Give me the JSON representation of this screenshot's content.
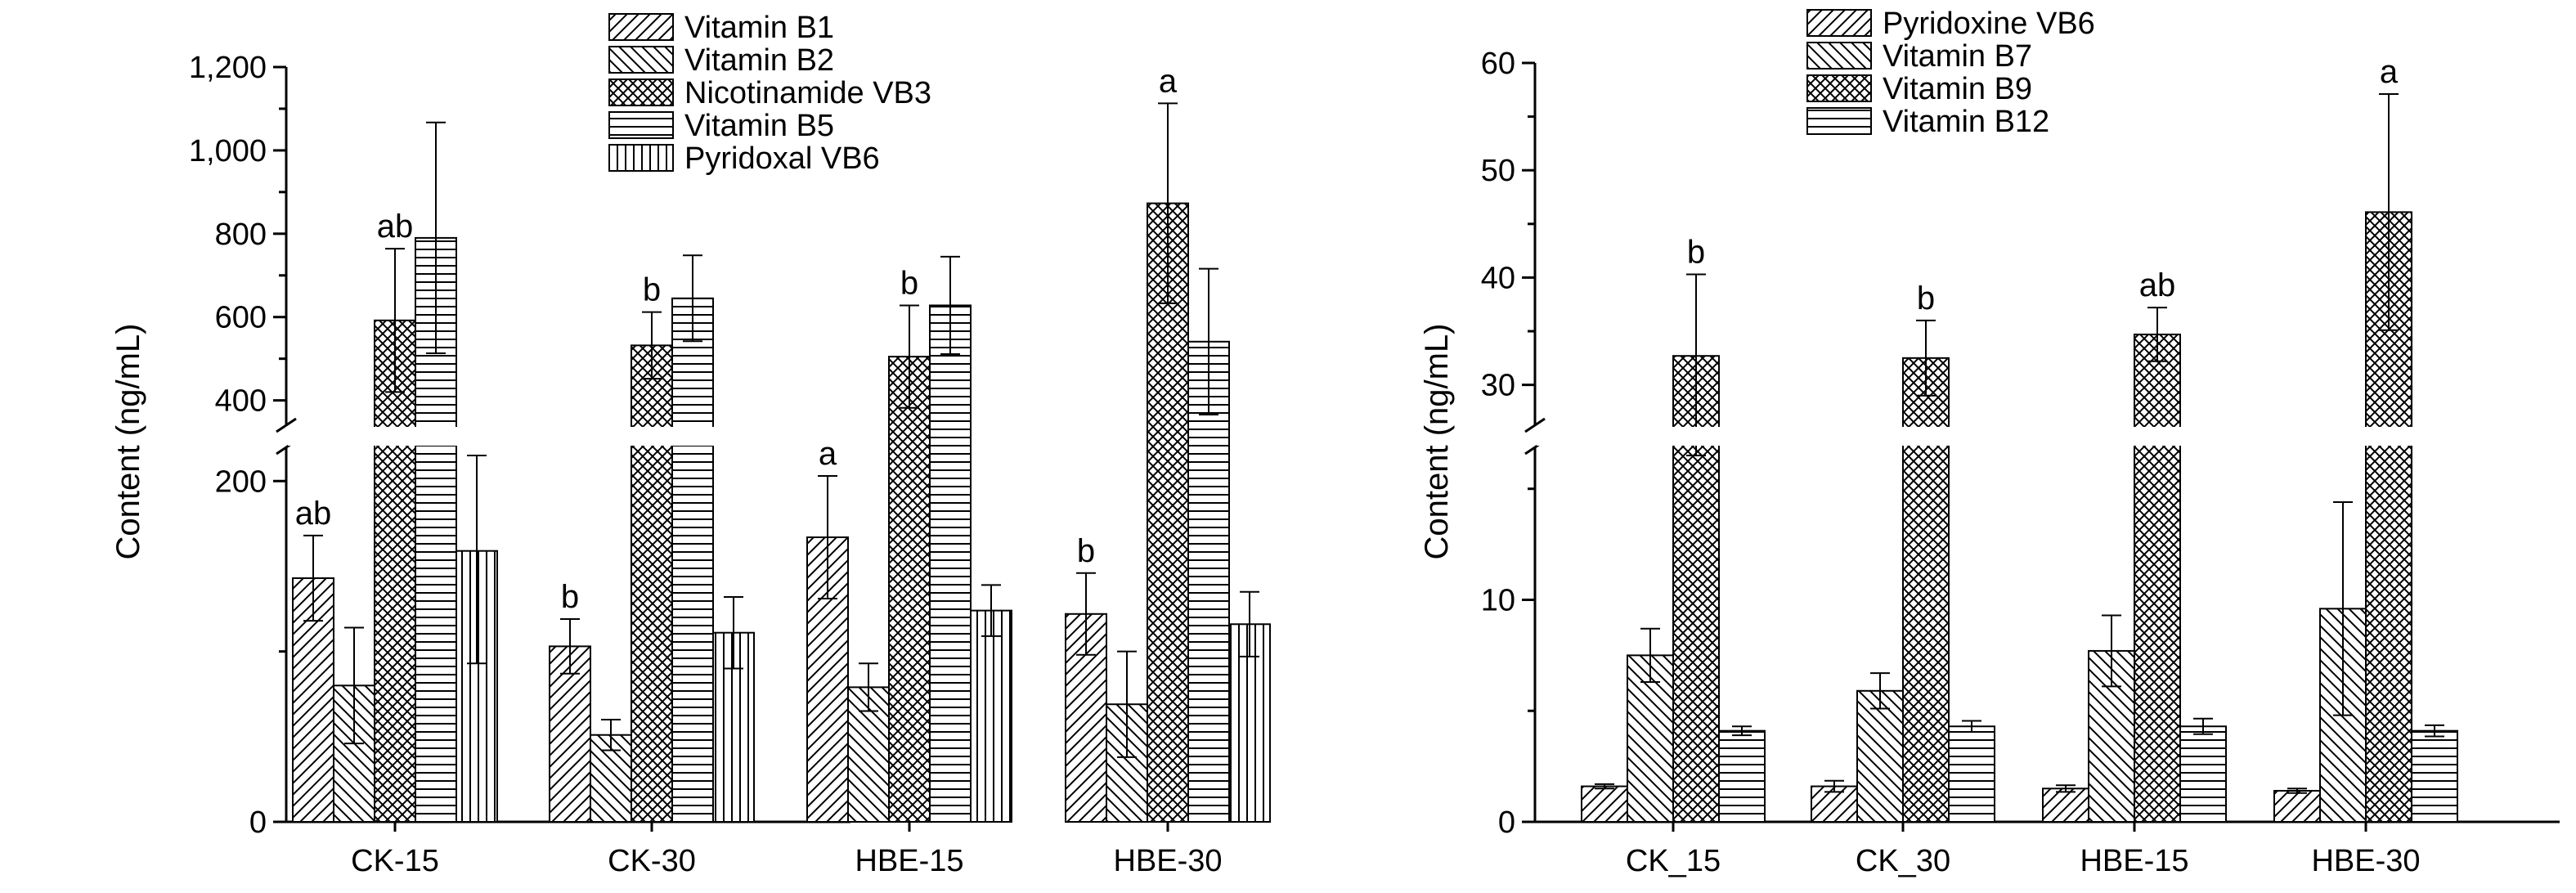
{
  "chart_data": [
    {
      "type": "bar",
      "ylabel": "Content (ng/mL)",
      "categories": [
        "CK-15",
        "CK-30",
        "HBE-15",
        "HBE-30"
      ],
      "broken_axis": {
        "lower": [
          0,
          215
        ],
        "upper": [
          360,
          1200
        ]
      },
      "yticks_lower": [
        "0",
        "200"
      ],
      "yticks_upper": [
        "400",
        "600",
        "800",
        "1,000",
        "1,200"
      ],
      "legend": [
        "Vitamin B1",
        "Vitamin B2",
        "Nicotinamide VB3",
        "Vitamin B5",
        "Pyridoxal VB6"
      ],
      "series": [
        {
          "name": "Vitamin B1",
          "pattern": "diag-right",
          "values": [
            143,
            103,
            167,
            122
          ],
          "errors": [
            25,
            16,
            36,
            24
          ],
          "labels": [
            "ab",
            "b",
            "a",
            "b"
          ]
        },
        {
          "name": "Vitamin B2",
          "pattern": "diag-left",
          "values": [
            80,
            51,
            79,
            69
          ],
          "errors": [
            34,
            9,
            14,
            31
          ],
          "labels": [
            "",
            "",
            "",
            ""
          ]
        },
        {
          "name": "Nicotinamide VB3",
          "pattern": "crosshatch",
          "values": [
            592,
            532,
            505,
            873
          ],
          "errors": [
            172,
            80,
            123,
            240
          ],
          "labels": [
            "ab",
            "b",
            "b",
            "a"
          ]
        },
        {
          "name": "Vitamin B5",
          "pattern": "horizontal",
          "values": [
            790,
            645,
            628,
            541
          ],
          "errors": [
            277,
            103,
            117,
            175
          ],
          "labels": [
            "",
            "",
            "",
            ""
          ]
        },
        {
          "name": "Pyridoxal VB6",
          "pattern": "vertical",
          "values": [
            159,
            111,
            124,
            116
          ],
          "errors": [
            66,
            21,
            15,
            19
          ],
          "labels": [
            "",
            "",
            "",
            ""
          ]
        }
      ]
    },
    {
      "type": "bar",
      "ylabel": "Content (ng/mL)",
      "categories": [
        "CK_15",
        "CK_30",
        "HBE-15",
        "HBE-30"
      ],
      "broken_axis": {
        "lower": [
          0,
          16.5
        ],
        "upper": [
          27,
          60
        ]
      },
      "yticks_lower": [
        "0",
        "10"
      ],
      "yticks_upper": [
        "30",
        "40",
        "50",
        "60"
      ],
      "legend": [
        "Pyridoxine VB6",
        "Vitamin B7",
        "Vitamin B9",
        "Vitamin B12"
      ],
      "series": [
        {
          "name": "Pyridoxine VB6",
          "pattern": "diag-right",
          "values": [
            1.6,
            1.6,
            1.5,
            1.4
          ],
          "errors": [
            0.1,
            0.25,
            0.15,
            0.1
          ],
          "labels": [
            "",
            "",
            "",
            ""
          ]
        },
        {
          "name": "Vitamin B7",
          "pattern": "diag-left",
          "values": [
            7.5,
            5.9,
            7.7,
            9.6
          ],
          "errors": [
            1.2,
            0.8,
            1.6,
            4.8
          ],
          "labels": [
            "",
            "",
            "",
            ""
          ]
        },
        {
          "name": "Vitamin B9",
          "pattern": "crosshatch",
          "values": [
            32.7,
            32.5,
            34.7,
            46.1
          ],
          "errors": [
            7.6,
            3.5,
            2.5,
            11.0
          ],
          "labels": [
            "b",
            "b",
            "ab",
            "a"
          ]
        },
        {
          "name": "Vitamin B12",
          "pattern": "horizontal",
          "values": [
            4.1,
            4.3,
            4.3,
            4.1
          ],
          "errors": [
            0.2,
            0.25,
            0.35,
            0.25
          ],
          "labels": [
            "",
            "",
            "",
            ""
          ]
        }
      ]
    }
  ]
}
